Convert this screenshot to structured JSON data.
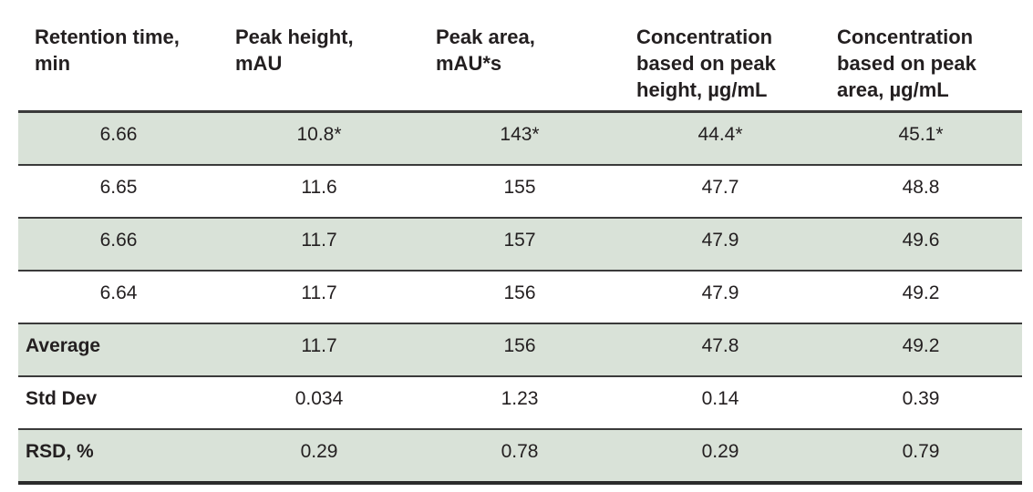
{
  "headers": [
    "Retention time,\nmin",
    "Peak height,\nmAU",
    "Peak area,\nmAU*s",
    "Concentration\nbased on peak\nheight, µg/mL",
    "Concentration\nbased on peak\narea, µg/mL"
  ],
  "rows": [
    {
      "cells": [
        "6.66",
        "10.8*",
        "143*",
        "44.4*",
        "45.1*"
      ],
      "shaded": true
    },
    {
      "cells": [
        "6.65",
        "11.6",
        "155",
        "47.7",
        "48.8"
      ],
      "shaded": false
    },
    {
      "cells": [
        "6.66",
        "11.7",
        "157",
        "47.9",
        "49.6"
      ],
      "shaded": true
    },
    {
      "cells": [
        "6.64",
        "11.7",
        "156",
        "47.9",
        "49.2"
      ],
      "shaded": false
    }
  ],
  "summary": [
    {
      "label": "Average",
      "cells": [
        "11.7",
        "156",
        "47.8",
        "49.2"
      ],
      "shaded": true
    },
    {
      "label": "Std Dev",
      "cells": [
        "0.034",
        "1.23",
        "0.14",
        "0.39"
      ],
      "shaded": false
    },
    {
      "label": "RSD, %",
      "cells": [
        "0.29",
        "0.78",
        "0.29",
        "0.79"
      ],
      "shaded": true
    }
  ],
  "colors": {
    "row_shade": "#d9e2d8",
    "rule": "#3a3a3a",
    "text": "#231f20"
  }
}
